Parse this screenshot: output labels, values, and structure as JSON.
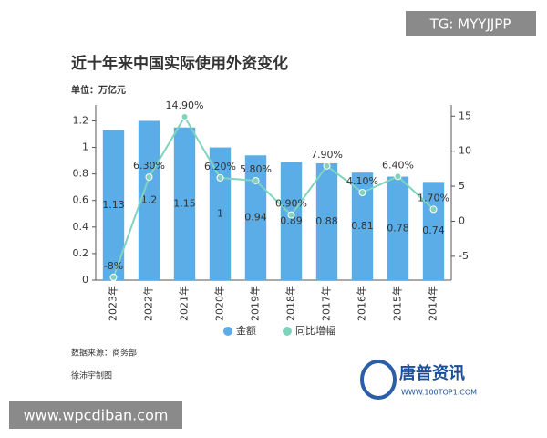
{
  "chart_data": {
    "type": "bar",
    "title": "近十年来中国实际使用外资变化",
    "subtitle": "单位：万亿元",
    "categories": [
      "2023年",
      "2022年",
      "2021年",
      "2020年",
      "2019年",
      "2018年",
      "2017年",
      "2016年",
      "2015年",
      "2014年"
    ],
    "series": [
      {
        "name": "金额",
        "type": "bar",
        "color": "#5aade6",
        "values": [
          1.13,
          1.2,
          1.15,
          1,
          0.94,
          0.89,
          0.88,
          0.81,
          0.78,
          0.74
        ]
      },
      {
        "name": "同比增幅",
        "type": "line",
        "axis": "y2",
        "color": "#82d3bd",
        "values": [
          -8,
          6.3,
          14.9,
          6.2,
          5.8,
          0.9,
          7.9,
          4.1,
          6.4,
          1.7
        ],
        "value_labels": [
          "-8%",
          "6.30%",
          "14.90%",
          "6.20%",
          "5.80%",
          "0.90%",
          "7.90%",
          "4.10%",
          "6.40%",
          "1.70%"
        ]
      }
    ],
    "ylim": [
      0,
      1.32
    ],
    "yticks": [
      0,
      0.2,
      0.4,
      0.6,
      0.8,
      1,
      1.2
    ],
    "y2lim": [
      -8.4,
      16.6
    ],
    "y2ticks": [
      -5,
      0,
      5,
      10,
      15
    ],
    "legend": "bottom",
    "source": "数据来源：商务部",
    "credit": "徐沛宇制图"
  },
  "overlays": {
    "top_watermark": "TG: MYYJJPP",
    "bottom_watermark": "www.wpcdiban.com",
    "logo_title": "唐普资讯",
    "logo_url": "WWW.100TOP1.COM"
  }
}
